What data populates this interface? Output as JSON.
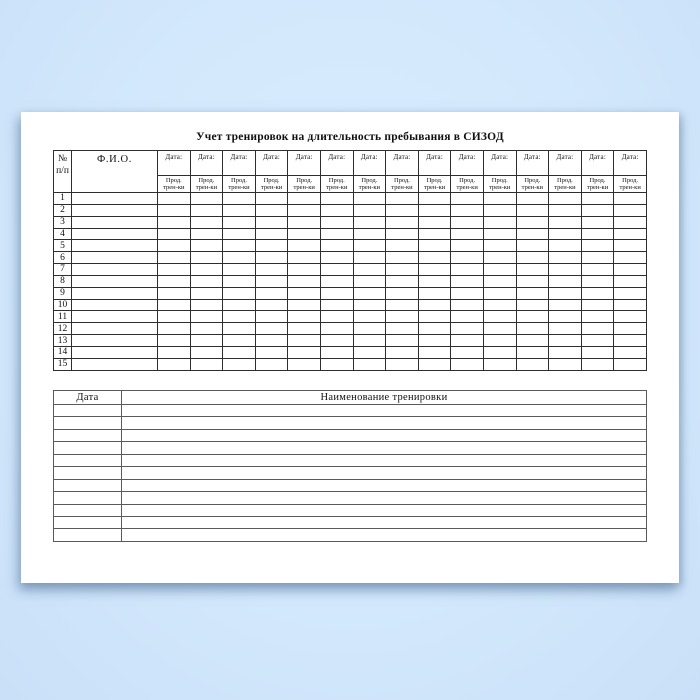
{
  "document": {
    "title": "Учет тренировок на длительность пребывания в СИЗОД"
  },
  "training_table": {
    "number_header": [
      "№",
      "п/п"
    ],
    "fio_header": "Ф.И.О.",
    "date_header": "Дата:",
    "duration_header": [
      "Прод.",
      "трен-ки"
    ],
    "date_column_count": 15,
    "row_numbers": [
      "1",
      "2",
      "3",
      "4",
      "5",
      "6",
      "7",
      "8",
      "9",
      "10",
      "11",
      "12",
      "13",
      "14",
      "15"
    ]
  },
  "log_table": {
    "date_header": "Дата",
    "name_header": "Наименование тренировки",
    "empty_row_count": 11
  }
}
